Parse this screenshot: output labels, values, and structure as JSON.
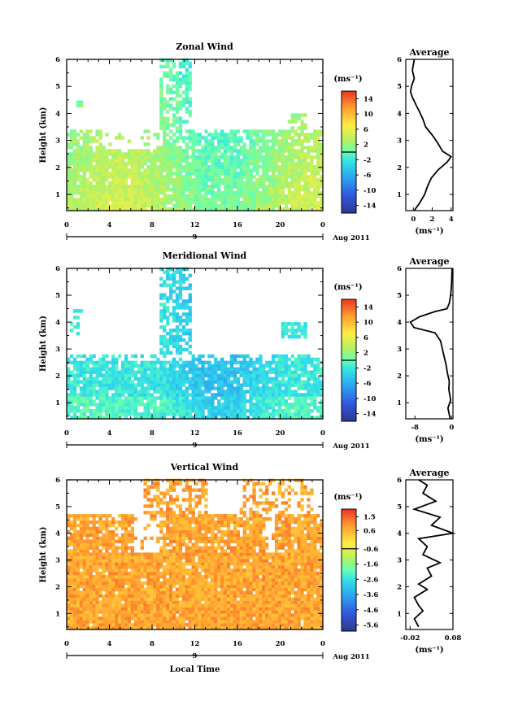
{
  "chart_data": [
    {
      "type": "heatmap",
      "title": "Zonal Wind",
      "ylabel": "Height (km)",
      "xlabel": "",
      "x_range": [
        0,
        24
      ],
      "y_range": [
        0.4,
        6
      ],
      "x_ticks": [
        "0",
        "4",
        "8",
        "12",
        "16",
        "20",
        "0"
      ],
      "y_ticks": [
        "1",
        "2",
        "3",
        "4",
        "5",
        "6"
      ],
      "date_ticks": [
        "9"
      ],
      "date_label": "Aug 2011",
      "colorbar": {
        "unit": "(ms⁻¹)",
        "range": [
          -16,
          16
        ],
        "tick_labels": [
          "14",
          "10",
          "6",
          "2",
          "-2",
          "-6",
          "-10",
          "-14"
        ],
        "tick_values": [
          14,
          10,
          6,
          2,
          -2,
          -6,
          -10,
          -14
        ]
      },
      "profile": {
        "title": "Average",
        "xlabel": "(ms⁻¹)",
        "x_range": [
          -0.8,
          4.2
        ],
        "x_ticks": [
          "0",
          "2",
          "4"
        ],
        "x_tick_values": [
          0,
          2,
          4
        ],
        "heights": [
          0.4,
          0.7,
          1.0,
          1.3,
          1.6,
          1.9,
          2.2,
          2.4,
          2.6,
          2.9,
          3.2,
          3.5,
          3.8,
          4.1,
          4.3,
          4.6,
          4.8,
          5.0,
          5.3,
          5.6,
          6.0
        ],
        "values": [
          0.1,
          0.7,
          1.2,
          1.5,
          1.9,
          2.6,
          3.6,
          4.0,
          3.1,
          2.6,
          2.0,
          1.3,
          1.0,
          0.6,
          0.3,
          -0.1,
          -0.3,
          -0.2,
          0.1,
          -0.1,
          0.1
        ]
      }
    },
    {
      "type": "heatmap",
      "title": "Meridional Wind",
      "ylabel": "Height (km)",
      "xlabel": "",
      "x_range": [
        0,
        24
      ],
      "y_range": [
        0.4,
        6
      ],
      "x_ticks": [
        "0",
        "4",
        "8",
        "12",
        "16",
        "20",
        "0"
      ],
      "y_ticks": [
        "1",
        "2",
        "3",
        "4",
        "5",
        "6"
      ],
      "date_ticks": [
        "9"
      ],
      "date_label": "Aug 2011",
      "colorbar": {
        "unit": "(ms⁻¹)",
        "range": [
          -16,
          16
        ],
        "tick_labels": [
          "14",
          "10",
          "6",
          "2",
          "-2",
          "-6",
          "-10",
          "-14"
        ],
        "tick_values": [
          14,
          10,
          6,
          2,
          -2,
          -6,
          -10,
          -14
        ]
      },
      "profile": {
        "title": "Average",
        "xlabel": "(ms⁻¹)",
        "x_range": [
          -10,
          0.3
        ],
        "x_ticks": [
          "-8",
          "0"
        ],
        "x_tick_values": [
          -8,
          0
        ],
        "heights": [
          0.4,
          0.8,
          1.1,
          1.5,
          1.8,
          2.1,
          2.4,
          2.7,
          3.0,
          3.3,
          3.6,
          3.8,
          4.0,
          4.2,
          4.4,
          4.5,
          4.7,
          5.0,
          5.4,
          6.0
        ],
        "values": [
          -0.3,
          -0.8,
          -0.2,
          -0.6,
          -0.5,
          -0.9,
          -1.2,
          -1.6,
          -2.0,
          -2.4,
          -3.6,
          -8.2,
          -9.0,
          -7.0,
          -3.5,
          -1.0,
          -0.5,
          -0.2,
          0.0,
          0.1
        ]
      }
    },
    {
      "type": "heatmap",
      "title": "Vertical Wind",
      "ylabel": "Height (km)",
      "xlabel": "Local Time",
      "x_range": [
        0,
        24
      ],
      "y_range": [
        0.4,
        6
      ],
      "x_ticks": [
        "0",
        "4",
        "8",
        "12",
        "16",
        "20",
        "0"
      ],
      "y_ticks": [
        "1",
        "2",
        "3",
        "4",
        "5",
        "6"
      ],
      "date_ticks": [
        "9"
      ],
      "date_label": "Aug 2011",
      "colorbar": {
        "unit": "(ms⁻¹)",
        "range": [
          -6.0,
          2.0
        ],
        "tick_labels": [
          "1.5",
          "0.6",
          "-0.6",
          "-1.6",
          "-2.6",
          "-3.6",
          "-4.6",
          "-5.6"
        ],
        "tick_values": [
          1.5,
          0.6,
          -0.6,
          -1.6,
          -2.6,
          -3.6,
          -4.6,
          -5.6
        ]
      },
      "profile": {
        "title": "Average",
        "xlabel": "(ms⁻¹)",
        "x_range": [
          -0.03,
          0.08
        ],
        "x_ticks": [
          "-0.02",
          "0.08"
        ],
        "x_tick_values": [
          -0.02,
          0.08
        ],
        "heights": [
          0.5,
          0.8,
          1.1,
          1.3,
          1.6,
          1.9,
          2.1,
          2.4,
          2.7,
          2.9,
          3.2,
          3.5,
          3.8,
          4.0,
          4.3,
          4.6,
          4.9,
          5.2,
          5.5,
          5.8,
          6.0
        ],
        "values": [
          0.0,
          -0.01,
          0.01,
          0.0,
          -0.01,
          0.02,
          0.0,
          0.03,
          0.02,
          0.05,
          0.01,
          0.02,
          0.0,
          0.08,
          0.03,
          0.05,
          -0.01,
          0.04,
          0.01,
          0.02,
          0.0
        ]
      }
    }
  ]
}
